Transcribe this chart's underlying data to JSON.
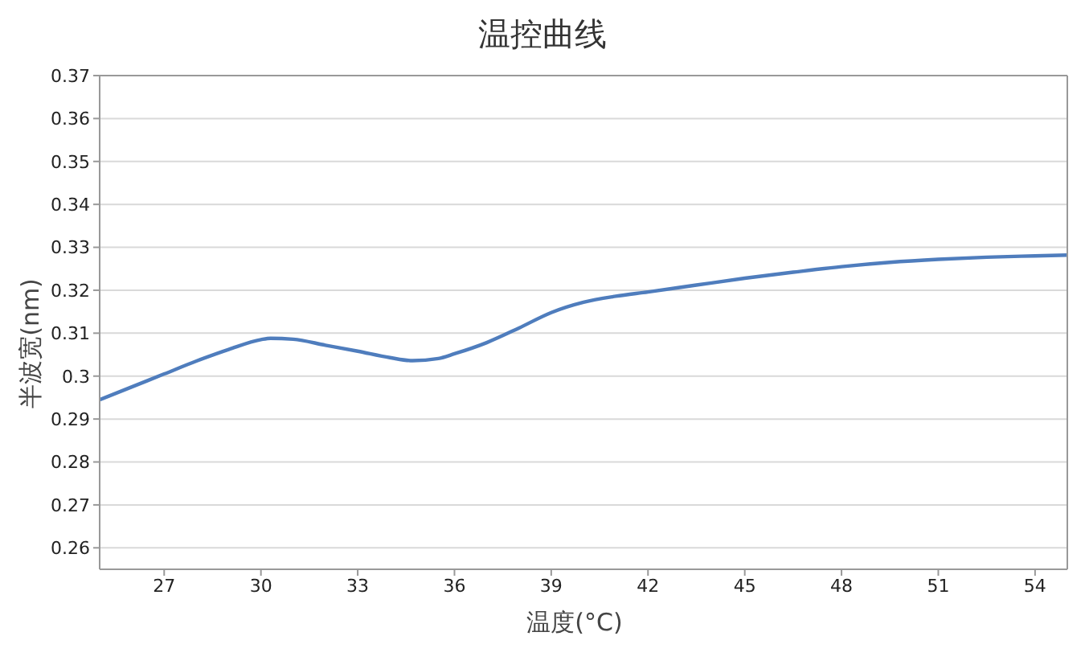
{
  "chart_data": {
    "type": "line",
    "title": "温控曲线",
    "xlabel": "温度(°C)",
    "ylabel": "半波宽(nm)",
    "x": [
      25,
      26,
      27,
      28,
      29,
      30,
      30.3,
      31,
      32,
      33,
      34,
      34.7,
      35.5,
      36,
      37,
      38,
      39,
      40,
      41,
      42,
      43.5,
      45,
      46.5,
      48,
      49.5,
      51,
      52.5,
      54,
      55
    ],
    "series": [
      {
        "color": "#4f7dbd",
        "values": [
          0.2945,
          0.2975,
          0.3005,
          0.3035,
          0.3062,
          0.3085,
          0.3088,
          0.3086,
          0.3072,
          0.3058,
          0.3043,
          0.3036,
          0.3041,
          0.3052,
          0.3078,
          0.3112,
          0.3148,
          0.3172,
          0.3186,
          0.3196,
          0.3212,
          0.3228,
          0.3242,
          0.3255,
          0.3265,
          0.3272,
          0.3277,
          0.328,
          0.3282
        ]
      }
    ],
    "xlim": [
      25,
      55
    ],
    "xticks": [
      27,
      30,
      33,
      36,
      39,
      42,
      45,
      48,
      51,
      54
    ],
    "ylim": [
      0.255,
      0.37
    ],
    "yticks": [
      0.26,
      0.27,
      0.28,
      0.29,
      0.3,
      0.31,
      0.32,
      0.33,
      0.34,
      0.35,
      0.36,
      0.37
    ],
    "grid": "y",
    "legend": false,
    "marker": "none",
    "line_style": "solid"
  }
}
